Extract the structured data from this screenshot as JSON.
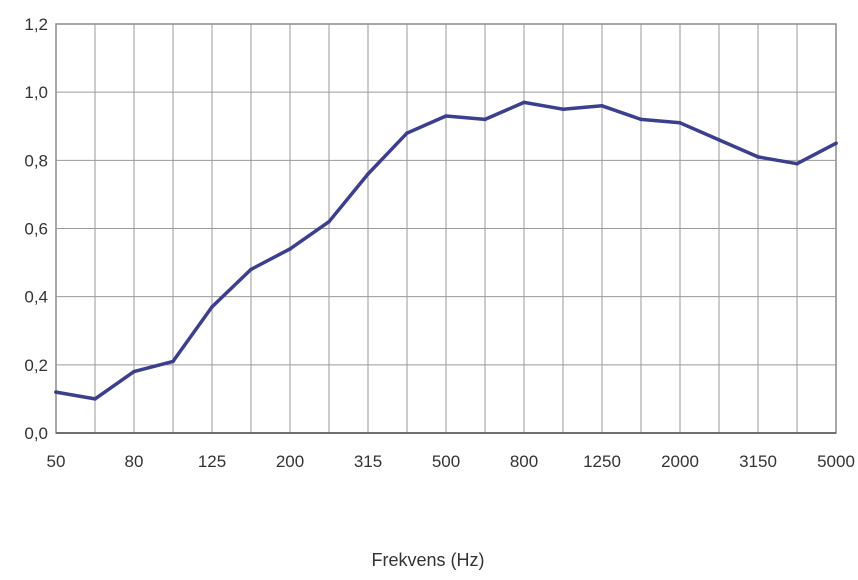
{
  "chart_data": {
    "type": "line",
    "title": "",
    "xlabel": "Frekvens (Hz)",
    "ylabel": "",
    "x_tick_labels": [
      "50",
      "80",
      "125",
      "200",
      "315",
      "500",
      "800",
      "1250",
      "2000",
      "3150",
      "5000"
    ],
    "y_tick_labels": [
      "0,0",
      "0,2",
      "0,4",
      "0,6",
      "0,8",
      "1,0",
      "1,2"
    ],
    "ylim": [
      0,
      1.2
    ],
    "grid": true,
    "legend": "none",
    "series": [
      {
        "x": [
          "50",
          "63",
          "80",
          "100",
          "125",
          "160",
          "200",
          "250",
          "315",
          "400",
          "500",
          "630",
          "800",
          "1000",
          "1250",
          "1600",
          "2000",
          "2500",
          "3150",
          "4000",
          "5000"
        ],
        "values": [
          0.12,
          0.1,
          0.18,
          0.21,
          0.37,
          0.48,
          0.54,
          0.62,
          0.76,
          0.88,
          0.93,
          0.92,
          0.97,
          0.95,
          0.96,
          0.92,
          0.91,
          0.86,
          0.81,
          0.79,
          0.85
        ],
        "color": "#3c3f8e"
      }
    ]
  },
  "colors": {
    "line": "#3c3f8e",
    "grid": "#9a9a9a",
    "frame": "#8c8c8c"
  }
}
